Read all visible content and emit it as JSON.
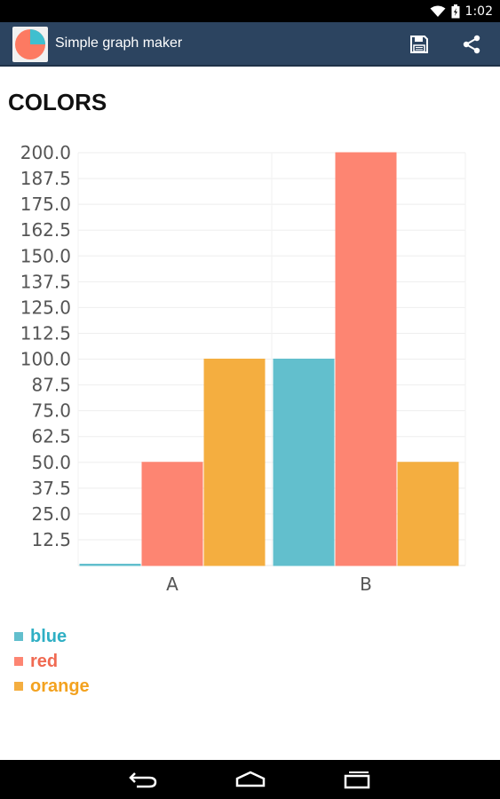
{
  "status_bar": {
    "time": "1:02",
    "icons": [
      "wifi-icon",
      "battery-icon"
    ]
  },
  "app": {
    "title": "Simple graph maker",
    "icon": "pie-chart-icon",
    "actions": [
      "save-icon",
      "share-icon"
    ]
  },
  "colors": {
    "action_bar": "#2c4460",
    "blue": "#62bfcd",
    "red": "#fd8572",
    "orange": "#f4ae40",
    "blue_text": "#2fafc4",
    "red_text": "#f06a52",
    "orange_text": "#f3a21f"
  },
  "chart_data": {
    "type": "bar",
    "title": "COLORS",
    "categories": [
      "A",
      "B"
    ],
    "series": [
      {
        "name": "blue",
        "values": [
          0,
          100
        ]
      },
      {
        "name": "red",
        "values": [
          50,
          200
        ]
      },
      {
        "name": "orange",
        "values": [
          100,
          50
        ]
      }
    ],
    "ylim": [
      0,
      200
    ],
    "yticks": [
      "12.5",
      "25.0",
      "37.5",
      "50.0",
      "62.5",
      "75.0",
      "87.5",
      "100.0",
      "112.5",
      "125.0",
      "137.5",
      "150.0",
      "162.5",
      "175.0",
      "187.5",
      "200.0"
    ],
    "grid": true,
    "legend": "bottom-left"
  },
  "nav_bar": {
    "icons": [
      "back-icon",
      "home-icon",
      "recent-apps-icon"
    ]
  }
}
